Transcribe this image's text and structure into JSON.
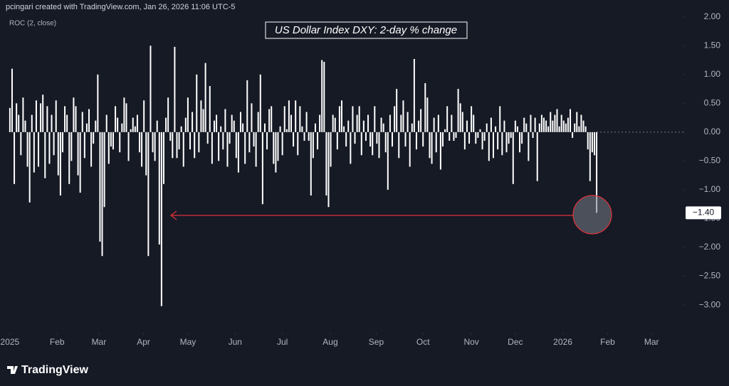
{
  "header": "pcingari created with TradingView.com, Jan 26, 2026 11:06 UTC-5",
  "footer_logo": "TradingView",
  "chart_data": {
    "type": "bar",
    "title": "US Dollar Index DXY: 2-day % change",
    "indicator_label": "ROC (2, close)",
    "color": "#ffffff",
    "grid": false,
    "xlim": [
      -4.5,
      306.5
    ],
    "xticks": [
      {
        "value": 0,
        "label": "2025"
      },
      {
        "value": 21.5,
        "label": "Feb"
      },
      {
        "value": 40.5,
        "label": "Mar"
      },
      {
        "value": 60.8,
        "label": "Apr"
      },
      {
        "value": 81,
        "label": "May"
      },
      {
        "value": 102.5,
        "label": "Jun"
      },
      {
        "value": 124,
        "label": "Jul"
      },
      {
        "value": 145.8,
        "label": "Aug"
      },
      {
        "value": 166.7,
        "label": "Sep"
      },
      {
        "value": 188,
        "label": "Oct"
      },
      {
        "value": 210,
        "label": "Nov"
      },
      {
        "value": 230,
        "label": "Dec"
      },
      {
        "value": 251.6,
        "label": "2026"
      },
      {
        "value": 272,
        "label": "Feb"
      },
      {
        "value": 292,
        "label": "Mar"
      }
    ],
    "ylim": [
      -3.48,
      2.12
    ],
    "yticks": [
      {
        "value": 2,
        "label": "2.00"
      },
      {
        "value": 1.5,
        "label": "1.50"
      },
      {
        "value": 1,
        "label": "1.00"
      },
      {
        "value": 0.5,
        "label": "0.50"
      },
      {
        "value": 0,
        "label": "0.00"
      },
      {
        "value": -0.5,
        "label": "−0.50"
      },
      {
        "value": -1,
        "label": "−1.00"
      },
      {
        "value": -1.5,
        "label": "−1.50"
      },
      {
        "value": -2,
        "label": "−2.00"
      },
      {
        "value": -2.5,
        "label": "−2.50"
      },
      {
        "value": -3,
        "label": "−3.00"
      }
    ],
    "last_value": {
      "value": -1.4,
      "label": "−1.40"
    },
    "values": [
      0.42,
      1.1,
      -0.9,
      0.5,
      0.3,
      -0.4,
      0.6,
      0.2,
      -0.6,
      -1.22,
      0.3,
      -0.7,
      0.55,
      -0.6,
      0.5,
      0.65,
      -0.8,
      0.45,
      -0.55,
      0.3,
      -0.4,
      0.55,
      -0.75,
      -1.1,
      -0.35,
      0.45,
      0.3,
      -0.9,
      -0.5,
      0.6,
      0.45,
      -0.75,
      -1.05,
      0.35,
      -0.45,
      0.15,
      0.4,
      -0.6,
      -0.2,
      0.2,
      1.0,
      -1.9,
      -2.15,
      -1.3,
      0.3,
      -0.55,
      -0.25,
      -0.3,
      0.45,
      0.25,
      -0.35,
      0.15,
      0.6,
      0.5,
      -0.5,
      0.05,
      0.25,
      0.1,
      0.3,
      -0.35,
      -0.6,
      0.55,
      -0.75,
      -2.15,
      1.5,
      -0.35,
      -0.5,
      0.2,
      -1.95,
      -3.02,
      -0.9,
      0.25,
      0.6,
      -0.15,
      -0.45,
      1.48,
      -0.45,
      -0.3,
      0.1,
      -0.6,
      0.25,
      0.6,
      -0.3,
      0.35,
      -0.45,
      1.0,
      -0.35,
      0.55,
      0.4,
      1.2,
      -0.2,
      0.8,
      -0.55,
      0.2,
      0.3,
      -0.5,
      0.1,
      -0.3,
      0.4,
      -0.6,
      -0.2,
      0.3,
      0.2,
      -0.45,
      -0.7,
      0.35,
      0.15,
      -0.55,
      0.9,
      -0.35,
      0.5,
      -0.25,
      -0.6,
      0.35,
      1.0,
      -1.25,
      0.15,
      -0.3,
      0.4,
      0.45,
      -0.55,
      -0.7,
      -0.5,
      0.1,
      -0.4,
      0.45,
      0.05,
      0.55,
      0.3,
      -0.25,
      0.55,
      -0.4,
      0.45,
      0.1,
      -0.15,
      0.35,
      -0.15,
      -1.1,
      -0.45,
      0.15,
      -0.3,
      0.3,
      1.25,
      1.22,
      -1.1,
      -1.3,
      -0.6,
      0.3,
      0.25,
      -0.3,
      0.45,
      0.55,
      0.1,
      -0.25,
      0.2,
      -0.55,
      0.45,
      -0.2,
      0.3,
      0.45,
      -0.4,
      0.2,
      -0.15,
      0.3,
      -0.25,
      -0.4,
      0.45,
      -0.2,
      -0.45,
      0.25,
      0.15,
      -0.35,
      -1.0,
      0.3,
      -0.25,
      0.45,
      0.75,
      -0.45,
      0.3,
      0.55,
      -0.25,
      0.35,
      -0.6,
      0.15,
      1.27,
      -0.3,
      0.2,
      0.4,
      -0.25,
      0.85,
      0.6,
      -0.45,
      -0.55,
      0.25,
      -0.35,
      0.3,
      -0.65,
      -0.25,
      0.05,
      0.45,
      -0.15,
      0.3,
      -0.15,
      -0.1,
      0.75,
      0.5,
      0.35,
      -0.3,
      0.2,
      -0.2,
      0.45,
      0.3,
      -0.2,
      -0.1,
      0.05,
      -0.3,
      -0.15,
      0.15,
      -0.5,
      0.25,
      -0.45,
      0.1,
      -0.3,
      0.45,
      -0.4,
      0.2,
      -0.35,
      -0.2,
      -0.1,
      -0.9,
      0.2,
      0.1,
      -0.35,
      -0.2,
      0.25,
      0.15,
      -0.5,
      0.3,
      -0.1,
      0.25,
      -0.85,
      0.15,
      0.3,
      0.25,
      0.2,
      0.1,
      0.35,
      0.2,
      0.3,
      0.4,
      0.1,
      0.3,
      0.2,
      0.15,
      0.25,
      0.4,
      -0.1,
      0.15,
      0.35,
      0.1,
      0.3,
      0.2,
      0.1,
      -0.3,
      -0.85,
      -0.35,
      -0.4,
      -1.4
    ]
  }
}
